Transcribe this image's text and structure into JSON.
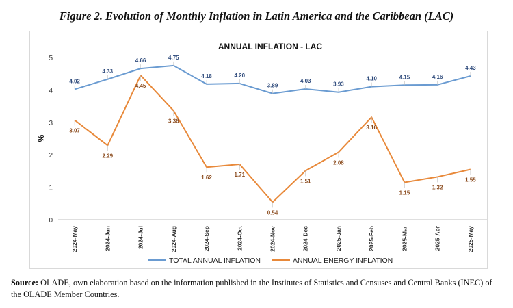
{
  "figure": {
    "title": "Figure 2. Evolution of Monthly Inflation in Latin America and the Caribbean (LAC)",
    "source_label": "Source:",
    "source_text": " OLADE, own elaboration based on the information published in the Institutes of Statistics and Censuses and Central Banks (INEC) of the OLADE Member Countries."
  },
  "chart_data": {
    "type": "line",
    "title": "ANNUAL INFLATION  - LAC",
    "ylabel": "%",
    "xlabel": "",
    "ylim": [
      0,
      5
    ],
    "yticks": [
      0,
      1,
      2,
      3,
      4,
      5
    ],
    "grid": false,
    "legend_position": "bottom",
    "categories": [
      "2024-May",
      "2024-Jun",
      "2024-Jul",
      "2024-Aug",
      "2024-Sep",
      "2024-Oct",
      "2024-Nov",
      "2024-Dec",
      "2025-Jan",
      "2025-Feb",
      "2025-Mar",
      "2025-Apr",
      "2025-May"
    ],
    "series": [
      {
        "name": "TOTAL ANNUAL INFLATION",
        "color": "#6a9bd1",
        "label_color": "#2f4b7c",
        "values": [
          4.02,
          4.33,
          4.66,
          4.75,
          4.18,
          4.2,
          3.89,
          4.03,
          3.93,
          4.1,
          4.15,
          4.16,
          4.43
        ],
        "labels": [
          "4.02",
          "4.33",
          "4.66",
          "4.75",
          "4.18",
          "4.20",
          "3.89",
          "4.03",
          "3.93",
          "4.10",
          "4.15",
          "4.16",
          "4.43"
        ]
      },
      {
        "name": "ANNUAL ENERGY INFLATION",
        "color": "#e8893a",
        "label_color": "#8a4a1c",
        "values": [
          3.07,
          2.29,
          4.45,
          3.36,
          1.62,
          1.71,
          0.54,
          1.51,
          2.08,
          3.16,
          1.15,
          1.32,
          1.55
        ],
        "labels": [
          "3.07",
          "2.29",
          "4.45",
          "3.36",
          "1.62",
          "1.71",
          "0.54",
          "1.51",
          "2.08",
          "3.16",
          "1.15",
          "1.32",
          "1.55"
        ]
      }
    ]
  }
}
